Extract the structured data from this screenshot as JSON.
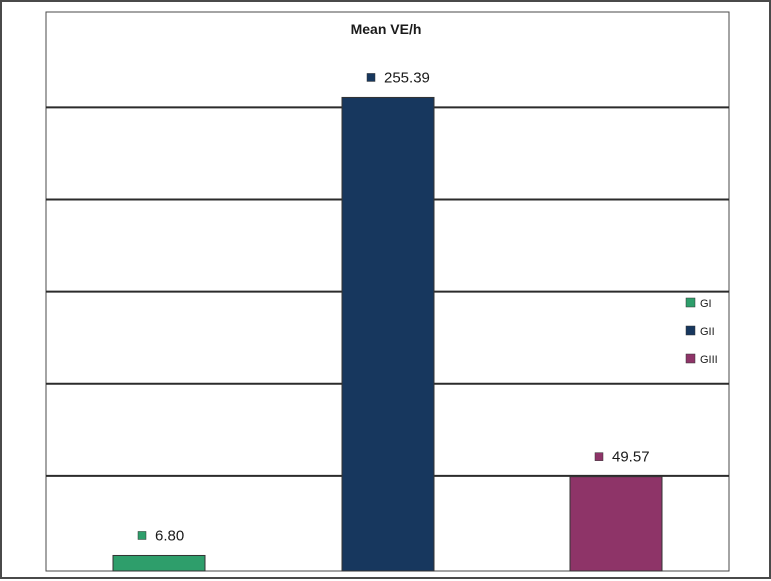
{
  "chart_data": {
    "type": "bar",
    "title": "Mean VE/h",
    "categories": [
      "GI",
      "GII",
      "GIII"
    ],
    "values": [
      6.8,
      255.39,
      49.57
    ],
    "value_labels": [
      "6.80",
      "255.39",
      "49.57"
    ],
    "colors": [
      "#2e9e6b",
      "#17375e",
      "#8e3468"
    ],
    "ylim": [
      0,
      257
    ],
    "gridlines": [
      0,
      50,
      100,
      150,
      200,
      250
    ],
    "grid": true,
    "legend": {
      "placement": "right",
      "entries": [
        "GI",
        "GII",
        "GIII"
      ]
    },
    "xlabel": "",
    "ylabel": ""
  }
}
